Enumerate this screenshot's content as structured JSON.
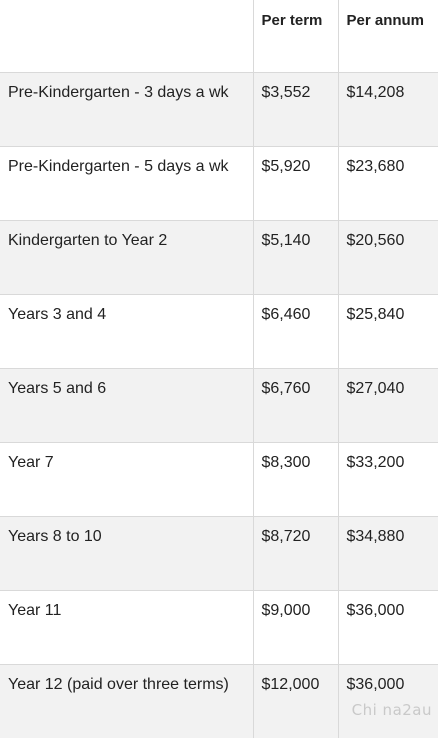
{
  "table": {
    "headers": [
      "",
      "Per term",
      "Per annum"
    ],
    "rows": [
      {
        "level": "Pre-Kindergarten - 3 days a wk",
        "per_term": "$3,552",
        "per_annum": "$14,208"
      },
      {
        "level": "Pre-Kindergarten - 5 days a wk",
        "per_term": "$5,920",
        "per_annum": "$23,680"
      },
      {
        "level": "Kindergarten to Year 2",
        "per_term": "$5,140",
        "per_annum": "$20,560"
      },
      {
        "level": "Years 3 and 4",
        "per_term": "$6,460",
        "per_annum": "$25,840"
      },
      {
        "level": "Years 5 and 6",
        "per_term": "$6,760",
        "per_annum": "$27,040"
      },
      {
        "level": "Year 7",
        "per_term": "$8,300",
        "per_annum": "$33,200"
      },
      {
        "level": "Years 8 to 10",
        "per_term": "$8,720",
        "per_annum": "$34,880"
      },
      {
        "level": "Year 11",
        "per_term": "$9,000",
        "per_annum": "$36,000"
      },
      {
        "level": "Year 12 (paid over three terms)",
        "per_term": "$12,000",
        "per_annum": "$36,000"
      }
    ]
  },
  "watermark": "Chi na2au"
}
